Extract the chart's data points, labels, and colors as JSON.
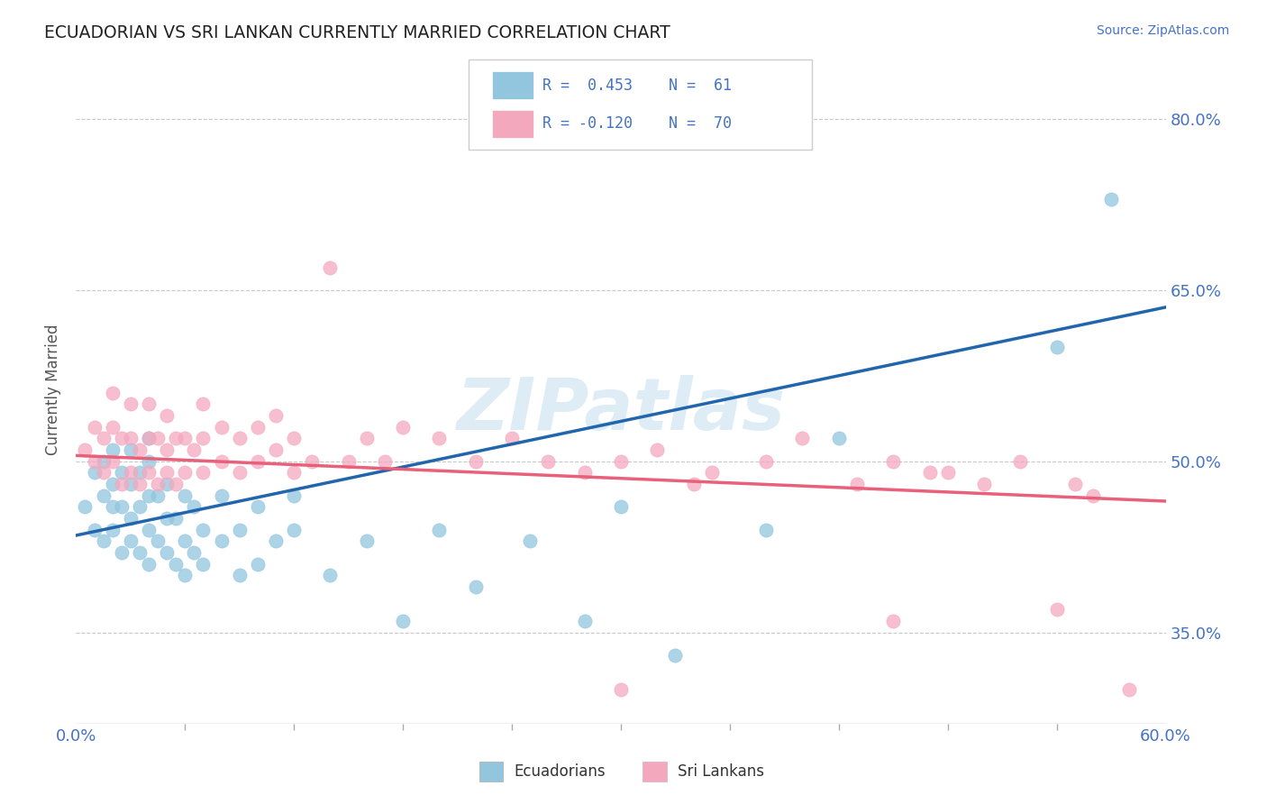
{
  "title": "ECUADORIAN VS SRI LANKAN CURRENTLY MARRIED CORRELATION CHART",
  "source_text": "Source: ZipAtlas.com",
  "ylabel": "Currently Married",
  "xlim": [
    0.0,
    0.6
  ],
  "ylim": [
    0.27,
    0.855
  ],
  "ytick_positions": [
    0.35,
    0.5,
    0.65,
    0.8
  ],
  "ytick_labels": [
    "35.0%",
    "50.0%",
    "65.0%",
    "80.0%"
  ],
  "blue_color": "#92C5DE",
  "pink_color": "#F4A8BE",
  "blue_line_color": "#2166AC",
  "pink_line_color": "#E8607A",
  "watermark": "ZIPatlas",
  "blue_seed": 101,
  "pink_seed": 202,
  "blue_scatter_x": [
    0.005,
    0.01,
    0.01,
    0.015,
    0.015,
    0.015,
    0.02,
    0.02,
    0.02,
    0.02,
    0.025,
    0.025,
    0.025,
    0.03,
    0.03,
    0.03,
    0.03,
    0.035,
    0.035,
    0.035,
    0.04,
    0.04,
    0.04,
    0.04,
    0.04,
    0.045,
    0.045,
    0.05,
    0.05,
    0.05,
    0.055,
    0.055,
    0.06,
    0.06,
    0.06,
    0.065,
    0.065,
    0.07,
    0.07,
    0.08,
    0.08,
    0.09,
    0.09,
    0.1,
    0.1,
    0.11,
    0.12,
    0.12,
    0.14,
    0.16,
    0.18,
    0.2,
    0.22,
    0.25,
    0.28,
    0.3,
    0.33,
    0.38,
    0.42,
    0.54,
    0.57
  ],
  "blue_scatter_y": [
    0.46,
    0.44,
    0.49,
    0.43,
    0.47,
    0.5,
    0.44,
    0.46,
    0.48,
    0.51,
    0.42,
    0.46,
    0.49,
    0.43,
    0.45,
    0.48,
    0.51,
    0.42,
    0.46,
    0.49,
    0.41,
    0.44,
    0.47,
    0.5,
    0.52,
    0.43,
    0.47,
    0.42,
    0.45,
    0.48,
    0.41,
    0.45,
    0.4,
    0.43,
    0.47,
    0.42,
    0.46,
    0.41,
    0.44,
    0.43,
    0.47,
    0.4,
    0.44,
    0.41,
    0.46,
    0.43,
    0.44,
    0.47,
    0.4,
    0.43,
    0.36,
    0.44,
    0.39,
    0.43,
    0.36,
    0.46,
    0.33,
    0.44,
    0.52,
    0.6,
    0.73
  ],
  "pink_scatter_x": [
    0.005,
    0.01,
    0.01,
    0.015,
    0.015,
    0.02,
    0.02,
    0.02,
    0.025,
    0.025,
    0.03,
    0.03,
    0.03,
    0.035,
    0.035,
    0.04,
    0.04,
    0.04,
    0.045,
    0.045,
    0.05,
    0.05,
    0.05,
    0.055,
    0.055,
    0.06,
    0.06,
    0.065,
    0.07,
    0.07,
    0.07,
    0.08,
    0.08,
    0.09,
    0.09,
    0.1,
    0.1,
    0.11,
    0.11,
    0.12,
    0.12,
    0.13,
    0.14,
    0.15,
    0.16,
    0.17,
    0.18,
    0.2,
    0.22,
    0.24,
    0.26,
    0.28,
    0.3,
    0.32,
    0.35,
    0.38,
    0.4,
    0.43,
    0.45,
    0.47,
    0.5,
    0.52,
    0.54,
    0.55,
    0.56,
    0.45,
    0.48,
    0.3,
    0.34,
    0.58
  ],
  "pink_scatter_y": [
    0.51,
    0.5,
    0.53,
    0.49,
    0.52,
    0.5,
    0.53,
    0.56,
    0.48,
    0.52,
    0.49,
    0.52,
    0.55,
    0.48,
    0.51,
    0.49,
    0.52,
    0.55,
    0.48,
    0.52,
    0.49,
    0.51,
    0.54,
    0.48,
    0.52,
    0.49,
    0.52,
    0.51,
    0.49,
    0.52,
    0.55,
    0.5,
    0.53,
    0.49,
    0.52,
    0.5,
    0.53,
    0.51,
    0.54,
    0.49,
    0.52,
    0.5,
    0.67,
    0.5,
    0.52,
    0.5,
    0.53,
    0.52,
    0.5,
    0.52,
    0.5,
    0.49,
    0.5,
    0.51,
    0.49,
    0.5,
    0.52,
    0.48,
    0.5,
    0.49,
    0.48,
    0.5,
    0.37,
    0.48,
    0.47,
    0.36,
    0.49,
    0.3,
    0.48,
    0.3
  ],
  "blue_line_x0": 0.0,
  "blue_line_y0": 0.435,
  "blue_line_x1": 0.6,
  "blue_line_y1": 0.635,
  "pink_line_x0": 0.0,
  "pink_line_y0": 0.505,
  "pink_line_x1": 0.6,
  "pink_line_y1": 0.465
}
